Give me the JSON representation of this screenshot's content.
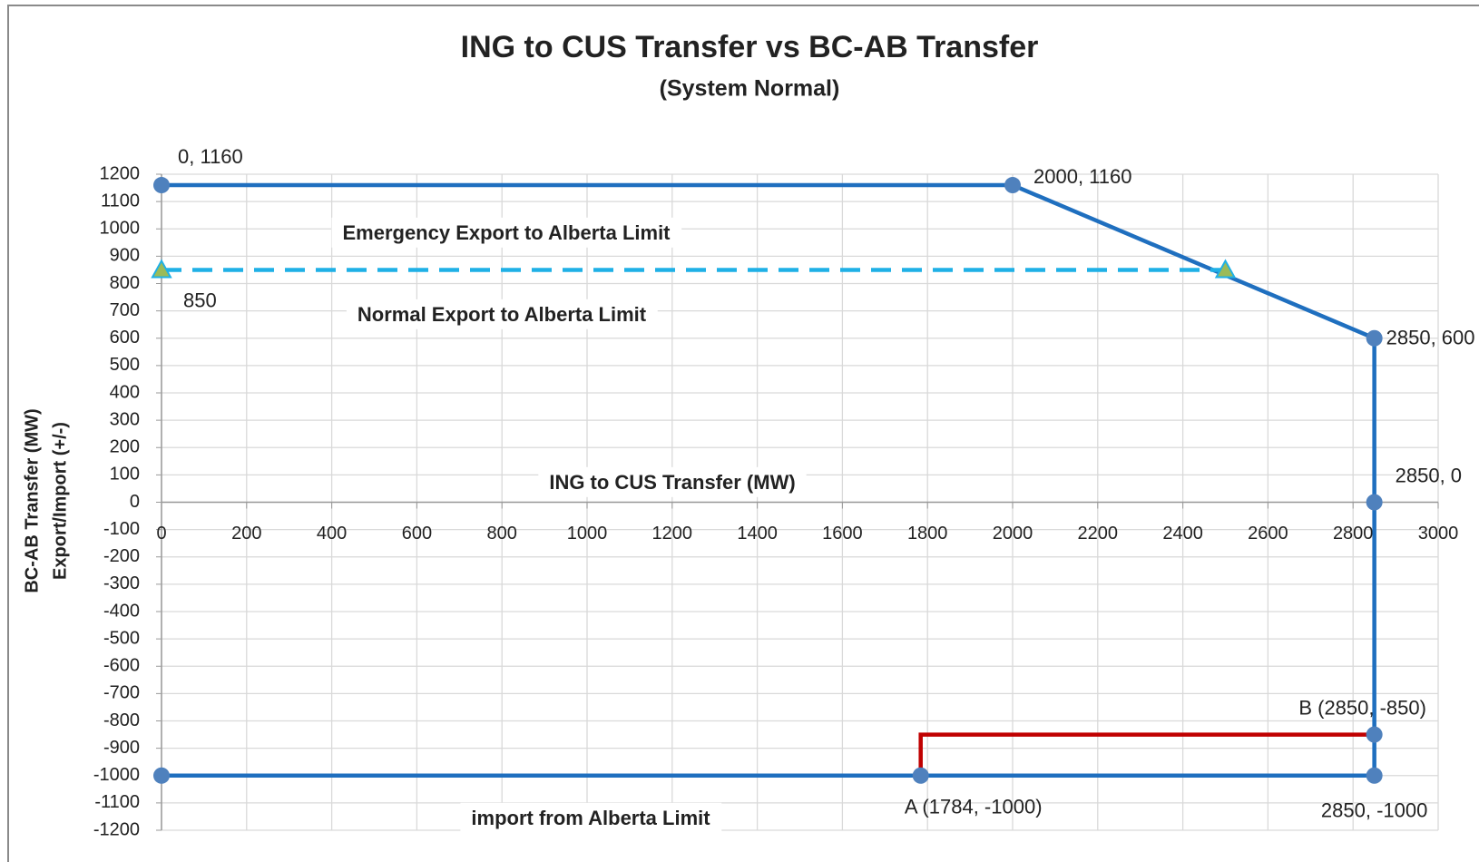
{
  "chart_data": {
    "type": "line",
    "title": "ING to CUS Transfer vs BC-AB Transfer",
    "subtitle": "(System Normal)",
    "xlabel": "ING to CUS Transfer (MW)",
    "ylabel": [
      "BC-AB Transfer (MW)",
      "Export/Import (+/-)"
    ],
    "xlim": [
      0,
      3000
    ],
    "xticks": [
      0,
      200,
      400,
      600,
      800,
      1000,
      1200,
      1400,
      1600,
      1800,
      2000,
      2200,
      2400,
      2600,
      2800,
      3000
    ],
    "ylim": [
      -1200,
      1200
    ],
    "yticks": [
      -1200,
      -1100,
      -1000,
      -900,
      -800,
      -700,
      -600,
      -500,
      -400,
      -300,
      -200,
      -100,
      0,
      100,
      200,
      300,
      400,
      500,
      600,
      700,
      800,
      900,
      1000,
      1100,
      1200
    ],
    "grid": true,
    "annotations": [
      "Emergency Export to Alberta Limit",
      "Normal Export to Alberta Limit",
      "import from Alberta Limit"
    ],
    "series": [
      {
        "color": "#1f6fbf",
        "marker": "circle",
        "marker_color": "#4f81bd",
        "dash": false,
        "x": [
          0,
          2000,
          2850,
          2850,
          2850,
          2850,
          1784,
          0
        ],
        "values": [
          1160,
          1160,
          600,
          0,
          -850,
          -1000,
          -1000,
          -1000
        ],
        "point_labels": [
          "0, 1160",
          "2000, 1160",
          "2850, 600",
          "2850, 0",
          "B (2850, -850)",
          "2850, -1000",
          "A (1784, -1000)",
          null
        ],
        "label_color": "#222222"
      },
      {
        "color": "#1fb0e6",
        "marker": "triangle",
        "marker_color": "#9bbb59",
        "dash": true,
        "x": [
          0,
          2500
        ],
        "values": [
          850,
          850
        ],
        "point_labels": [
          "850",
          null
        ],
        "label_color": "#c00000"
      },
      {
        "color": "#c00000",
        "marker": null,
        "dash": false,
        "x": [
          1784,
          1784,
          2850
        ],
        "values": [
          -1000,
          -850,
          -850
        ]
      }
    ]
  }
}
